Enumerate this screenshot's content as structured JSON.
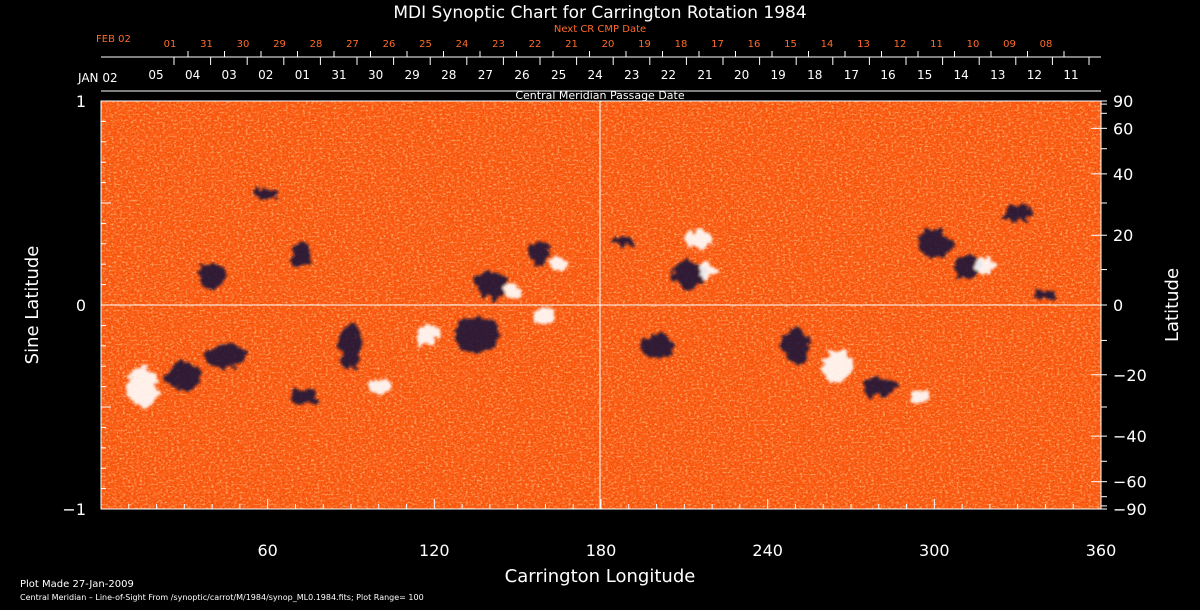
{
  "chart_data": {
    "type": "heatmap",
    "title": "MDI Synoptic Chart for Carrington Rotation 1984",
    "xlabel": "Carrington Longitude",
    "ylabel_left": "Sine Latitude",
    "ylabel_right": "Latitude",
    "xlim": [
      0,
      360
    ],
    "ylim": [
      -1,
      1
    ],
    "x_ticks": [
      60,
      120,
      180,
      240,
      300,
      360
    ],
    "y_ticks_left": [
      "1",
      "0",
      "−1"
    ],
    "lat_ticks_right": [
      90,
      60,
      40,
      20,
      0,
      -20,
      -40,
      -60,
      -90
    ],
    "lat_tick_labels_right": [
      "90",
      "60",
      "40",
      "20",
      "0",
      "−20",
      "−40",
      "−60",
      "−90"
    ],
    "cmp_axis": {
      "title": "Central Meridian Passage Date",
      "start_label": "JAN 02",
      "labels": [
        "05",
        "04",
        "03",
        "02",
        "01",
        "31",
        "30",
        "29",
        "28",
        "27",
        "26",
        "25",
        "24",
        "23",
        "22",
        "21",
        "20",
        "19",
        "18",
        "17",
        "16",
        "15",
        "14",
        "13",
        "12",
        "11"
      ]
    },
    "next_cr_axis": {
      "title": "Next CR CMP Date",
      "start_label": "FEB 02",
      "labels": [
        "01",
        "31",
        "30",
        "29",
        "28",
        "27",
        "26",
        "25",
        "24",
        "23",
        "22",
        "21",
        "20",
        "19",
        "18",
        "17",
        "16",
        "15",
        "14",
        "13",
        "12",
        "11",
        "10",
        "09",
        "08"
      ]
    },
    "colormap": {
      "negative": "#0a0a3a",
      "neutral": "#ff5a10",
      "positive": "#ffffff"
    },
    "plot_range": 100
  },
  "footer": {
    "plot_made": "Plot Made 27-Jan-2009",
    "description": "Central Meridian – Line-of-Sight From /synoptic/carrot/M/1984/synop_ML0.1984.fits; Plot Range=  100"
  }
}
